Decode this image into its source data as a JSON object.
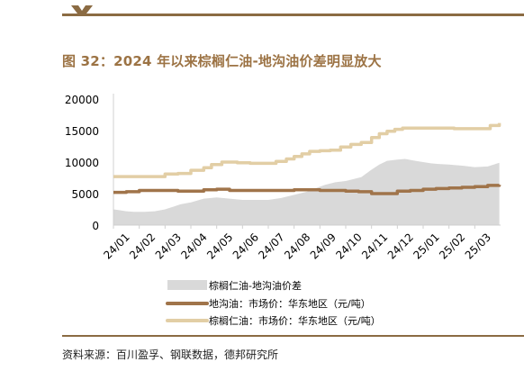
{
  "header": {
    "title": "图 32：2024 年以来棕榈仁油-地沟油价差明显放大"
  },
  "footer": {
    "source": "资料来源：百川盈孚、钢联数据，德邦研究所"
  },
  "colors": {
    "brand": "#8b6b43",
    "title": "#9c7344",
    "spread_area": "#d9d9d9",
    "gutter_oil": "#a0744a",
    "kernel_oil": "#e2cea5"
  },
  "chart_data": {
    "type": "line",
    "x_ticks": [
      "24/01",
      "24/02",
      "24/03",
      "24/04",
      "24/05",
      "24/06",
      "24/07",
      "24/08",
      "24/09",
      "24/10",
      "24/11",
      "24/12",
      "25/01",
      "25/02",
      "25/03"
    ],
    "ylim": [
      0,
      20000
    ],
    "y_ticks": [
      "0",
      "5000",
      "10000",
      "15000",
      "20000"
    ],
    "y_tick_values": [
      0,
      5000,
      10000,
      15000,
      20000
    ],
    "grid": false,
    "legend_position": "bottom",
    "series": [
      {
        "name": "棕榈仁油-地沟油价差",
        "kind": "area",
        "color": "#d9d9d9",
        "x": [
          0,
          0.2,
          0.5,
          0.8,
          1.2,
          1.6,
          2.0,
          2.3,
          2.6,
          3.0,
          3.5,
          4.0,
          4.5,
          5.0,
          5.5,
          6.0,
          6.5,
          7.0,
          7.5,
          7.8,
          8.2,
          8.6,
          9.0,
          9.3,
          9.6,
          10.0,
          10.3,
          10.6,
          11.0,
          11.3,
          11.7,
          12.0,
          12.3,
          12.6,
          13.0,
          13.3,
          13.6,
          14.0,
          14.5,
          14.95
        ],
        "y": [
          2500,
          2400,
          2200,
          2100,
          2100,
          2200,
          2500,
          2900,
          3300,
          3600,
          4200,
          4400,
          4200,
          4000,
          4000,
          4000,
          4300,
          4800,
          5300,
          5800,
          6400,
          6800,
          7000,
          7300,
          7600,
          8800,
          9600,
          10200,
          10400,
          10500,
          10200,
          10000,
          9800,
          9700,
          9600,
          9500,
          9400,
          9200,
          9300,
          9900
        ]
      },
      {
        "name": "地沟油：市场价：华东地区（元/吨）",
        "kind": "line",
        "color": "#a0744a",
        "x": [
          0,
          0.5,
          1.0,
          1.5,
          2.0,
          2.5,
          3.0,
          3.5,
          4.0,
          4.5,
          5.0,
          6.0,
          7.0,
          7.5,
          8.0,
          8.5,
          9.0,
          9.5,
          10.0,
          10.5,
          11.0,
          11.5,
          12.0,
          12.5,
          13.0,
          13.5,
          14.0,
          14.5,
          14.95
        ],
        "y": [
          5200,
          5300,
          5500,
          5500,
          5500,
          5400,
          5400,
          5600,
          5700,
          5500,
          5500,
          5500,
          5600,
          5600,
          5500,
          5500,
          5400,
          5300,
          5000,
          5000,
          5400,
          5500,
          5700,
          5800,
          5900,
          6000,
          6100,
          6300,
          6400
        ]
      },
      {
        "name": "棕榈仁油：市场价：华东地区（元/吨）",
        "kind": "line",
        "color": "#e2cea5",
        "x": [
          0,
          0.5,
          1.0,
          1.5,
          2.0,
          2.5,
          3.0,
          3.5,
          3.8,
          4.2,
          4.8,
          5.3,
          5.8,
          6.3,
          6.7,
          7.0,
          7.3,
          7.6,
          8.0,
          8.4,
          8.8,
          9.2,
          9.6,
          10.0,
          10.3,
          10.6,
          10.9,
          11.2,
          11.6,
          12.0,
          12.4,
          12.8,
          13.2,
          13.6,
          14.0,
          14.3,
          14.6,
          14.95
        ],
        "y": [
          7700,
          7700,
          7700,
          7700,
          8100,
          8200,
          8700,
          9100,
          9600,
          10000,
          9900,
          9800,
          9800,
          10100,
          10500,
          10900,
          11300,
          11700,
          11800,
          11900,
          12400,
          12800,
          13100,
          13900,
          14500,
          14900,
          15200,
          15400,
          15400,
          15400,
          15400,
          15400,
          15300,
          15300,
          15300,
          15300,
          15800,
          16200
        ]
      }
    ]
  }
}
